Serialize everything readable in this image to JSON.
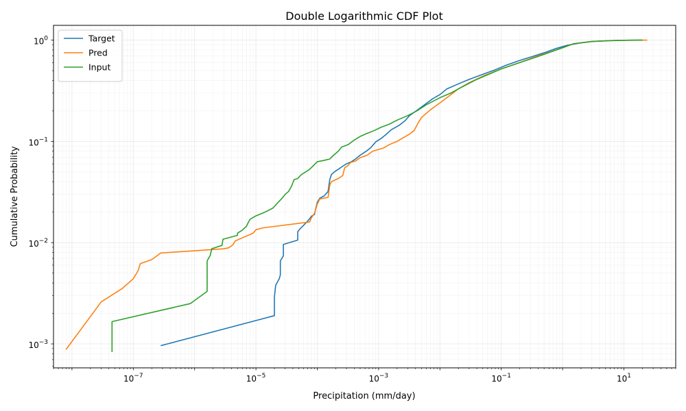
{
  "chart_data": {
    "type": "line",
    "title": "Double Logarithmic CDF Plot",
    "xlabel": "Precipitation (mm/day)",
    "ylabel": "Cumulative Probability",
    "xscale": "log",
    "yscale": "log",
    "xlim": [
      5e-09,
      70
    ],
    "ylim": [
      0.00058,
      1.4
    ],
    "grid": true,
    "legend_position": "top-left",
    "x_ticks": [
      {
        "value": 1e-07,
        "base": "10",
        "exp": "−7"
      },
      {
        "value": 1e-05,
        "base": "10",
        "exp": "−5"
      },
      {
        "value": 0.001,
        "base": "10",
        "exp": "−3"
      },
      {
        "value": 0.1,
        "base": "10",
        "exp": "−1"
      },
      {
        "value": 10,
        "base": "10",
        "exp": "1"
      }
    ],
    "y_ticks": [
      {
        "value": 0.001,
        "base": "10",
        "exp": "−3"
      },
      {
        "value": 0.01,
        "base": "10",
        "exp": "−2"
      },
      {
        "value": 0.1,
        "base": "10",
        "exp": "−1"
      },
      {
        "value": 1,
        "base": "10",
        "exp": "0"
      }
    ],
    "series": [
      {
        "name": "Target",
        "color": "#1f77b4",
        "points": [
          [
            2.8e-07,
            0.00096
          ],
          [
            2e-05,
            0.0019
          ],
          [
            2e-05,
            0.0029
          ],
          [
            2.1e-05,
            0.0038
          ],
          [
            2.4e-05,
            0.0044
          ],
          [
            2.5e-05,
            0.0048
          ],
          [
            2.5e-05,
            0.0066
          ],
          [
            2.8e-05,
            0.0074
          ],
          [
            2.8e-05,
            0.0096
          ],
          [
            4.8e-05,
            0.0106
          ],
          [
            4.8e-05,
            0.0128
          ],
          [
            5.3e-05,
            0.0138
          ],
          [
            6.5e-05,
            0.0156
          ],
          [
            7.5e-05,
            0.0172
          ],
          [
            8e-05,
            0.0182
          ],
          [
            9e-05,
            0.019
          ],
          [
            9.5e-05,
            0.022
          ],
          [
            0.0001,
            0.025
          ],
          [
            0.00011,
            0.0275
          ],
          [
            0.00013,
            0.029
          ],
          [
            0.00015,
            0.032
          ],
          [
            0.00016,
            0.042
          ],
          [
            0.00017,
            0.047
          ],
          [
            0.00019,
            0.05
          ],
          [
            0.00022,
            0.053
          ],
          [
            0.00025,
            0.056
          ],
          [
            0.0003,
            0.06
          ],
          [
            0.00036,
            0.063
          ],
          [
            0.00042,
            0.067
          ],
          [
            0.0005,
            0.073
          ],
          [
            0.00063,
            0.08
          ],
          [
            0.00075,
            0.087
          ],
          [
            0.0009,
            0.099
          ],
          [
            0.0011,
            0.107
          ],
          [
            0.0013,
            0.116
          ],
          [
            0.0016,
            0.13
          ],
          [
            0.0022,
            0.145
          ],
          [
            0.0027,
            0.16
          ],
          [
            0.0032,
            0.18
          ],
          [
            0.0042,
            0.202
          ],
          [
            0.0055,
            0.228
          ],
          [
            0.0075,
            0.262
          ],
          [
            0.01,
            0.29
          ],
          [
            0.013,
            0.33
          ],
          [
            0.02,
            0.37
          ],
          [
            0.03,
            0.41
          ],
          [
            0.05,
            0.46
          ],
          [
            0.08,
            0.51
          ],
          [
            0.12,
            0.565
          ],
          [
            0.2,
            0.63
          ],
          [
            0.3,
            0.68
          ],
          [
            0.5,
            0.75
          ],
          [
            0.8,
            0.83
          ],
          [
            1.2,
            0.89
          ],
          [
            2.0,
            0.94
          ],
          [
            3.0,
            0.97
          ],
          [
            6.0,
            0.99
          ],
          [
            12.0,
            0.998
          ],
          [
            20.0,
            1.0
          ]
        ]
      },
      {
        "name": "Pred",
        "color": "#ff7f0e",
        "points": [
          [
            8e-09,
            0.00088
          ],
          [
            3e-08,
            0.0026
          ],
          [
            6.5e-08,
            0.0035
          ],
          [
            1e-07,
            0.0044
          ],
          [
            1.2e-07,
            0.0053
          ],
          [
            1.3e-07,
            0.0062
          ],
          [
            2e-07,
            0.0068
          ],
          [
            2.8e-07,
            0.0079
          ],
          [
            3e-06,
            0.0087
          ],
          [
            3.6e-06,
            0.0089
          ],
          [
            4.2e-06,
            0.0095
          ],
          [
            4.6e-06,
            0.0104
          ],
          [
            9e-06,
            0.0124
          ],
          [
            1e-05,
            0.0134
          ],
          [
            1.3e-05,
            0.014
          ],
          [
            7.5e-05,
            0.016
          ],
          [
            8e-05,
            0.0175
          ],
          [
            9e-05,
            0.0195
          ],
          [
            0.0001,
            0.024
          ],
          [
            0.00011,
            0.027
          ],
          [
            0.00015,
            0.028
          ],
          [
            0.00016,
            0.037
          ],
          [
            0.00017,
            0.04
          ],
          [
            0.00022,
            0.043
          ],
          [
            0.00026,
            0.046
          ],
          [
            0.00028,
            0.055
          ],
          [
            0.00031,
            0.057
          ],
          [
            0.00035,
            0.062
          ],
          [
            0.00042,
            0.064
          ],
          [
            0.0005,
            0.069
          ],
          [
            0.00065,
            0.073
          ],
          [
            0.0008,
            0.08
          ],
          [
            0.0012,
            0.086
          ],
          [
            0.0015,
            0.093
          ],
          [
            0.002,
            0.1
          ],
          [
            0.0026,
            0.11
          ],
          [
            0.0032,
            0.118
          ],
          [
            0.0038,
            0.128
          ],
          [
            0.0045,
            0.155
          ],
          [
            0.005,
            0.172
          ],
          [
            0.007,
            0.205
          ],
          [
            0.01,
            0.24
          ],
          [
            0.013,
            0.27
          ],
          [
            0.02,
            0.33
          ],
          [
            0.03,
            0.38
          ],
          [
            0.05,
            0.44
          ],
          [
            0.1,
            0.52
          ],
          [
            0.2,
            0.6
          ],
          [
            0.4,
            0.7
          ],
          [
            0.8,
            0.8
          ],
          [
            1.5,
            0.92
          ],
          [
            3.0,
            0.97
          ],
          [
            8.0,
            0.995
          ],
          [
            24.0,
            1.0
          ]
        ]
      },
      {
        "name": "Input",
        "color": "#2ca02c",
        "points": [
          [
            4.5e-08,
            0.00083
          ],
          [
            4.5e-08,
            0.00166
          ],
          [
            8.5e-07,
            0.0025
          ],
          [
            1.6e-06,
            0.0033
          ],
          [
            1.6e-06,
            0.0066
          ],
          [
            1.8e-06,
            0.0075
          ],
          [
            1.9e-06,
            0.0087
          ],
          [
            2.8e-06,
            0.0094
          ],
          [
            2.9e-06,
            0.0108
          ],
          [
            5e-06,
            0.0118
          ],
          [
            5e-06,
            0.0124
          ],
          [
            6e-06,
            0.0133
          ],
          [
            7e-06,
            0.0145
          ],
          [
            7.5e-06,
            0.0158
          ],
          [
            8e-06,
            0.017
          ],
          [
            1e-05,
            0.0184
          ],
          [
            1.3e-05,
            0.0196
          ],
          [
            1.6e-05,
            0.0208
          ],
          [
            1.9e-05,
            0.022
          ],
          [
            2.1e-05,
            0.0235
          ],
          [
            2.3e-05,
            0.025
          ],
          [
            2.6e-05,
            0.027
          ],
          [
            3e-05,
            0.03
          ],
          [
            3.4e-05,
            0.032
          ],
          [
            3.8e-05,
            0.036
          ],
          [
            4.2e-05,
            0.042
          ],
          [
            4.8e-05,
            0.043
          ],
          [
            5.5e-05,
            0.047
          ],
          [
            6.5e-05,
            0.05
          ],
          [
            7.5e-05,
            0.053
          ],
          [
            8.5e-05,
            0.057
          ],
          [
            0.0001,
            0.063
          ],
          [
            0.00013,
            0.065
          ],
          [
            0.00016,
            0.067
          ],
          [
            0.00018,
            0.072
          ],
          [
            0.00022,
            0.08
          ],
          [
            0.00025,
            0.088
          ],
          [
            0.00032,
            0.093
          ],
          [
            0.0004,
            0.103
          ],
          [
            0.0005,
            0.112
          ],
          [
            0.00065,
            0.12
          ],
          [
            0.00085,
            0.128
          ],
          [
            0.0011,
            0.138
          ],
          [
            0.0015,
            0.148
          ],
          [
            0.002,
            0.162
          ],
          [
            0.003,
            0.18
          ],
          [
            0.0042,
            0.2
          ],
          [
            0.006,
            0.23
          ],
          [
            0.01,
            0.27
          ],
          [
            0.015,
            0.3
          ],
          [
            0.02,
            0.33
          ],
          [
            0.04,
            0.41
          ],
          [
            0.1,
            0.52
          ],
          [
            0.2,
            0.6
          ],
          [
            0.4,
            0.69
          ],
          [
            0.8,
            0.8
          ],
          [
            1.5,
            0.92
          ],
          [
            3.0,
            0.97
          ],
          [
            8.0,
            0.995
          ],
          [
            20.0,
            1.0
          ]
        ]
      }
    ]
  }
}
